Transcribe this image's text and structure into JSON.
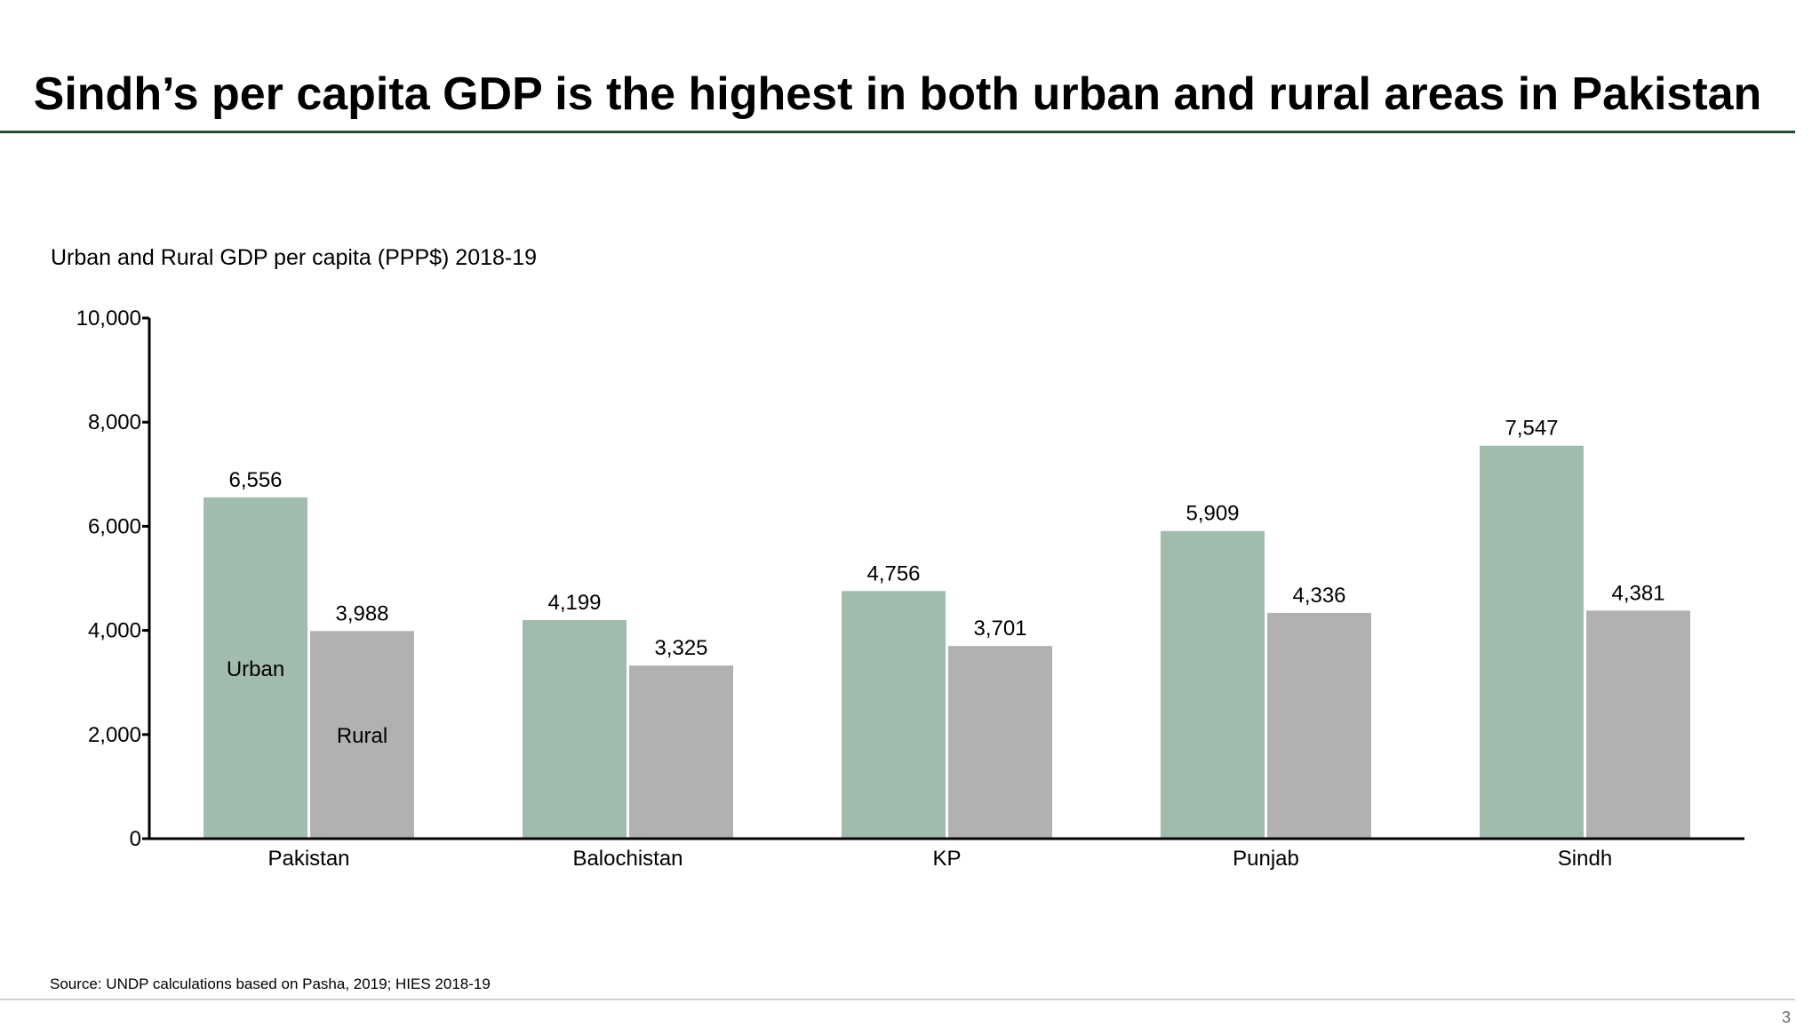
{
  "slide": {
    "title": "Sindh’s per capita GDP is the highest in both urban and rural areas in Pakistan",
    "source": "Source: UNDP calculations based on Pasha, 2019; HIES 2018-19",
    "page_number": "3"
  },
  "colors": {
    "urban": "#a1bcac",
    "rural": "#b1b1b1",
    "title_rule": "#1e4d35",
    "axis": "#000000"
  },
  "chart_data": {
    "type": "bar",
    "title": "Urban and Rural GDP per capita (PPP$) 2018-19",
    "xlabel": "",
    "ylabel": "",
    "ylim": [
      0,
      10000
    ],
    "yticks": [
      0,
      2000,
      4000,
      6000,
      8000,
      10000
    ],
    "ytick_labels": [
      "0",
      "2,000",
      "4,000",
      "6,000",
      "8,000",
      "10,000"
    ],
    "categories": [
      "Pakistan",
      "Balochistan",
      "KP",
      "Punjab",
      "Sindh"
    ],
    "series": [
      {
        "name": "Urban",
        "values": [
          6556,
          4199,
          4756,
          5909,
          7547
        ],
        "labels": [
          "6,556",
          "4,199",
          "4,756",
          "5,909",
          "7,547"
        ]
      },
      {
        "name": "Rural",
        "values": [
          3988,
          3325,
          3701,
          4336,
          4381
        ],
        "labels": [
          "3,988",
          "3,325",
          "3,701",
          "4,336",
          "4,381"
        ]
      }
    ],
    "legend": "inside first category bars"
  }
}
